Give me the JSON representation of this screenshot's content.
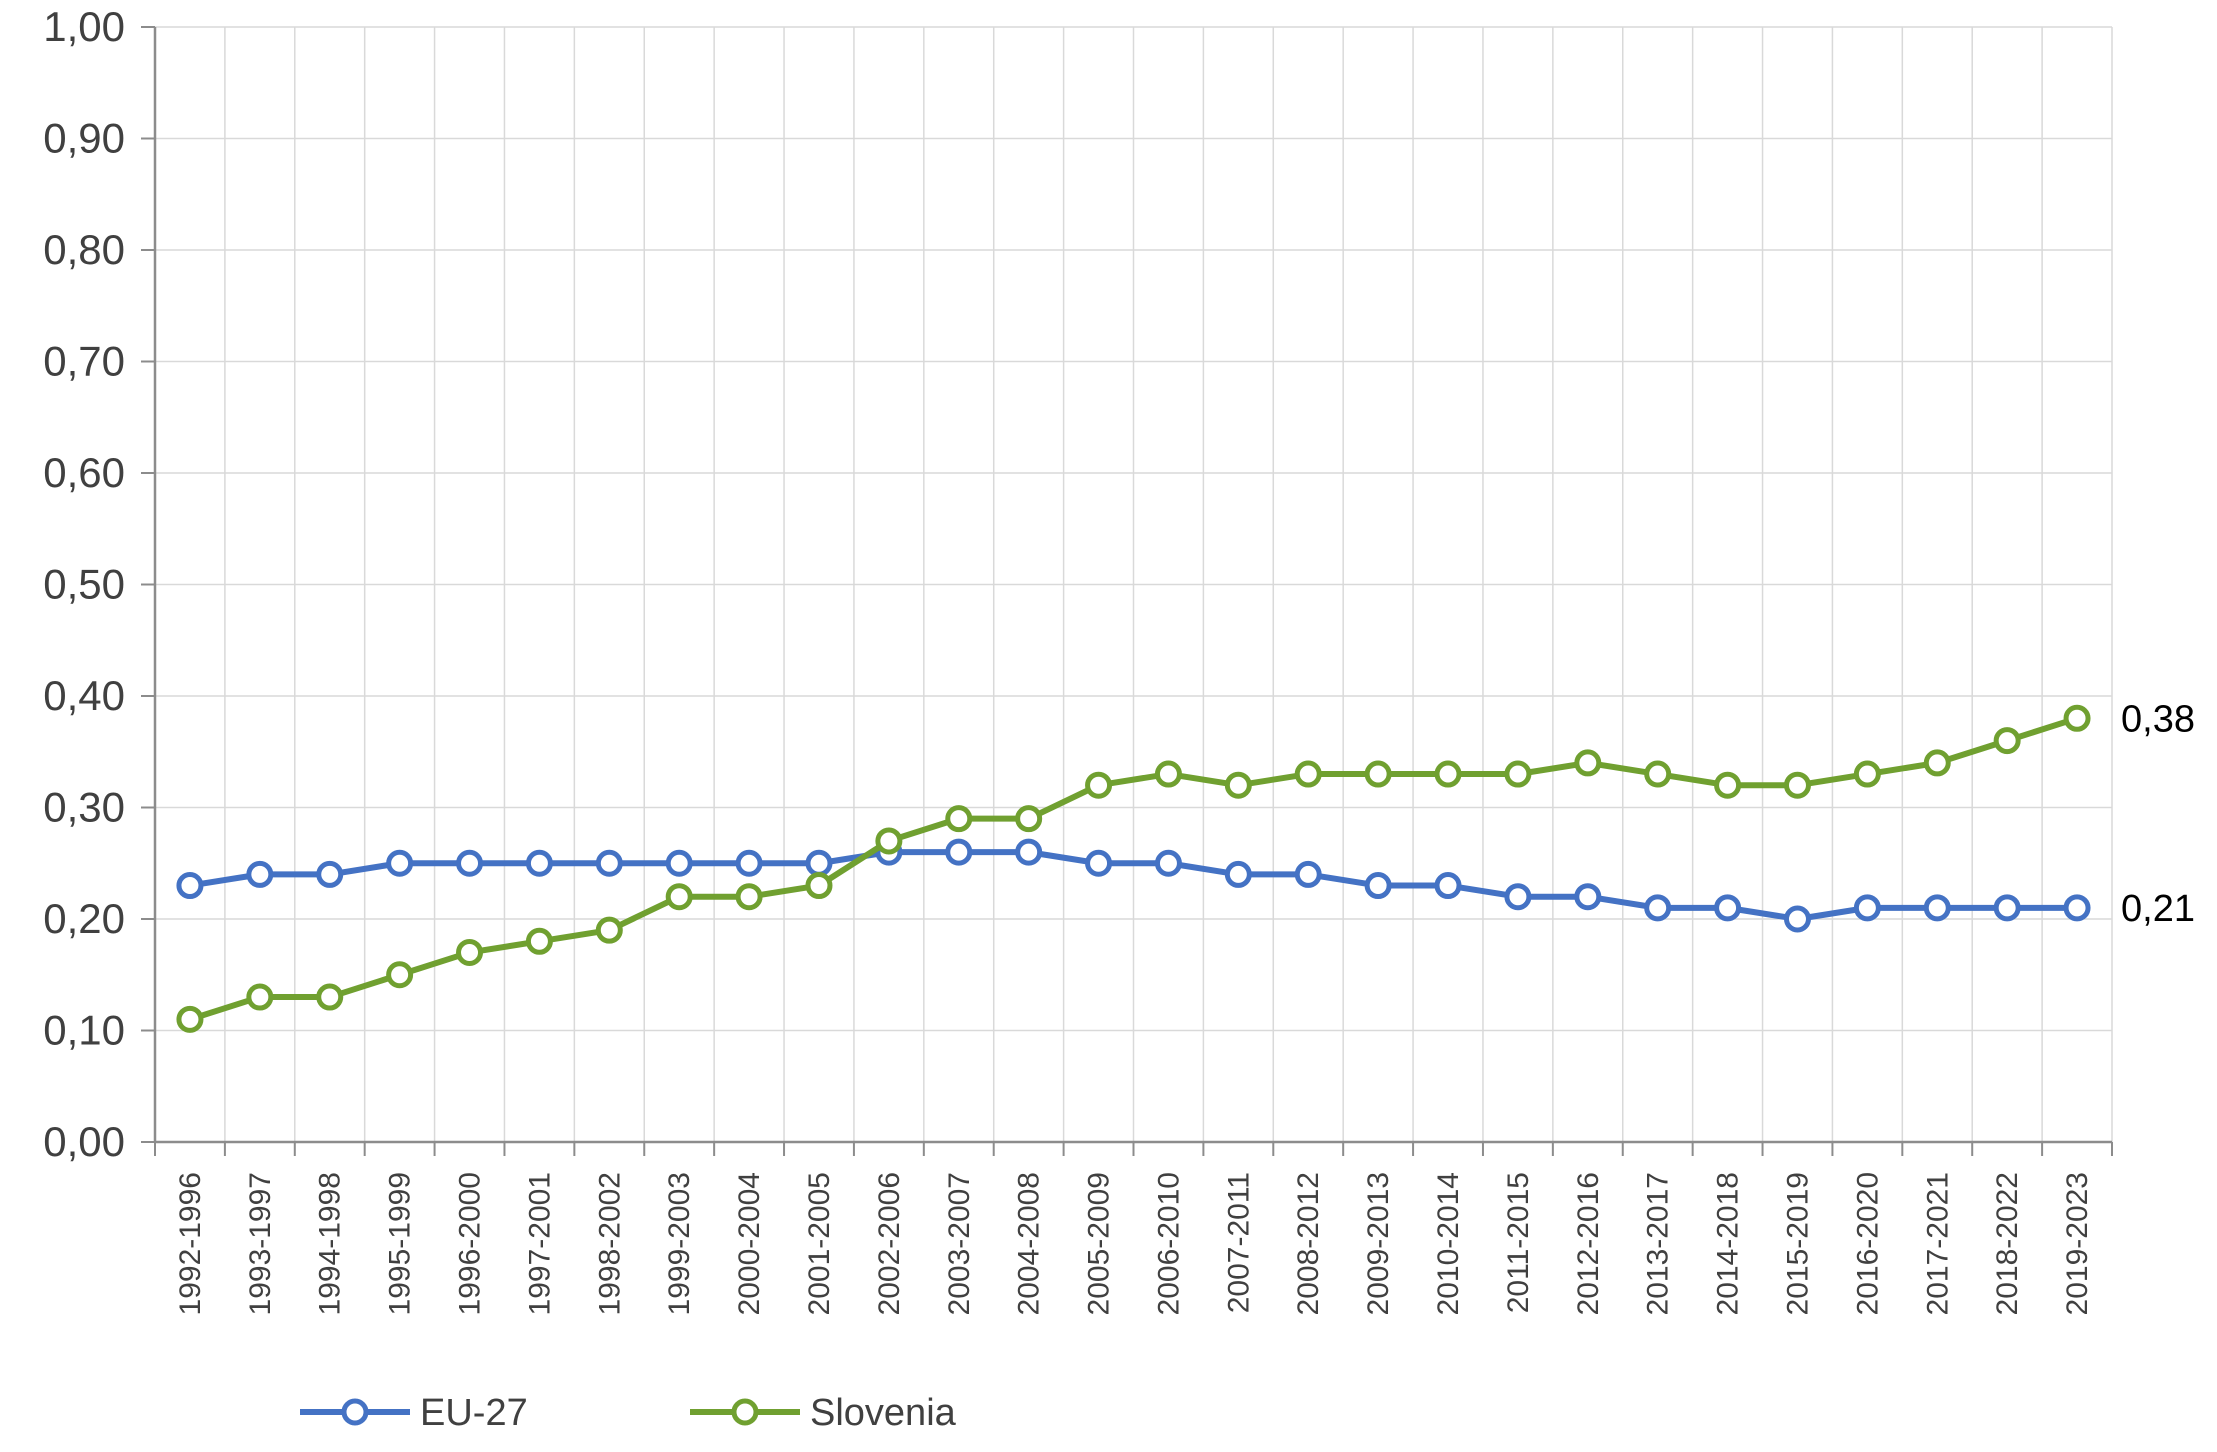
{
  "chart_data": {
    "type": "line",
    "categories": [
      "1992-1996",
      "1993-1997",
      "1994-1998",
      "1995-1999",
      "1996-2000",
      "1997-2001",
      "1998-2002",
      "1999-2003",
      "2000-2004",
      "2001-2005",
      "2002-2006",
      "2003-2007",
      "2004-2008",
      "2005-2009",
      "2006-2010",
      "2007-2011",
      "2008-2012",
      "2009-2013",
      "2010-2014",
      "2011-2015",
      "2012-2016",
      "2013-2017",
      "2014-2018",
      "2015-2019",
      "2016-2020",
      "2017-2021",
      "2018-2022",
      "2019-2023"
    ],
    "series": [
      {
        "name": "EU-27",
        "color": "#4472C4",
        "values": [
          0.23,
          0.24,
          0.24,
          0.25,
          0.25,
          0.25,
          0.25,
          0.25,
          0.25,
          0.25,
          0.26,
          0.26,
          0.26,
          0.25,
          0.25,
          0.24,
          0.24,
          0.23,
          0.23,
          0.22,
          0.22,
          0.21,
          0.21,
          0.2,
          0.21,
          0.21,
          0.21,
          0.21
        ],
        "end_label": "0,21"
      },
      {
        "name": "Slovenia",
        "color": "#70A030",
        "values": [
          0.11,
          0.13,
          0.13,
          0.15,
          0.17,
          0.18,
          0.19,
          0.22,
          0.22,
          0.23,
          0.27,
          0.29,
          0.29,
          0.32,
          0.33,
          0.32,
          0.33,
          0.33,
          0.33,
          0.33,
          0.34,
          0.33,
          0.32,
          0.32,
          0.33,
          0.34,
          0.36,
          0.38
        ],
        "end_label": "0,38"
      }
    ],
    "ylim": [
      0,
      1
    ],
    "yticks": [
      "0,00",
      "0,10",
      "0,20",
      "0,30",
      "0,40",
      "0,50",
      "0,60",
      "0,70",
      "0,80",
      "0,90",
      "1,00"
    ],
    "grid": true,
    "legend_position": "bottom-left",
    "title": "",
    "xlabel": "",
    "ylabel": ""
  }
}
